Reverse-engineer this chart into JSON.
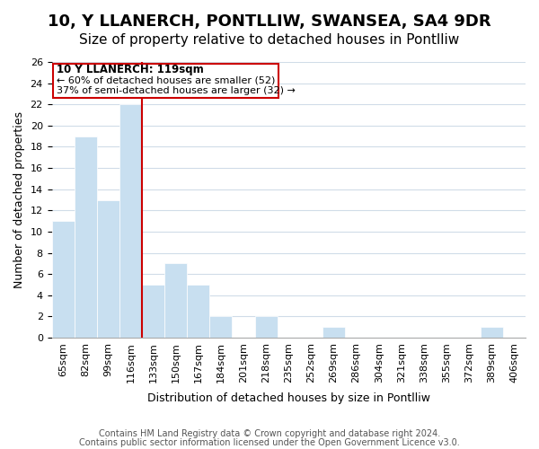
{
  "title": "10, Y LLANERCH, PONTLLIW, SWANSEA, SA4 9DR",
  "subtitle": "Size of property relative to detached houses in Pontlliw",
  "xlabel": "Distribution of detached houses by size in Pontlliw",
  "ylabel": "Number of detached properties",
  "bar_color": "#c8dff0",
  "bar_edge_color": "#ffffff",
  "bins": [
    "65sqm",
    "82sqm",
    "99sqm",
    "116sqm",
    "133sqm",
    "150sqm",
    "167sqm",
    "184sqm",
    "201sqm",
    "218sqm",
    "235sqm",
    "252sqm",
    "269sqm",
    "286sqm",
    "304sqm",
    "321sqm",
    "338sqm",
    "355sqm",
    "372sqm",
    "389sqm",
    "406sqm"
  ],
  "values": [
    11,
    19,
    13,
    22,
    5,
    7,
    5,
    2,
    0,
    2,
    0,
    0,
    1,
    0,
    0,
    0,
    0,
    0,
    0,
    1,
    0
  ],
  "ylim": [
    0,
    26
  ],
  "yticks": [
    0,
    2,
    4,
    6,
    8,
    10,
    12,
    14,
    16,
    18,
    20,
    22,
    24,
    26
  ],
  "property_line_x": 3,
  "property_line_color": "#cc0000",
  "annotation_title": "10 Y LLANERCH: 119sqm",
  "annotation_line1": "← 60% of detached houses are smaller (52)",
  "annotation_line2": "37% of semi-detached houses are larger (32) →",
  "annotation_box_color": "#ffffff",
  "annotation_box_edge_color": "#cc0000",
  "footer_line1": "Contains HM Land Registry data © Crown copyright and database right 2024.",
  "footer_line2": "Contains public sector information licensed under the Open Government Licence v3.0.",
  "background_color": "#ffffff",
  "grid_color": "#d0dce8",
  "title_fontsize": 13,
  "subtitle_fontsize": 11,
  "axis_label_fontsize": 9,
  "tick_fontsize": 8,
  "footer_fontsize": 7
}
